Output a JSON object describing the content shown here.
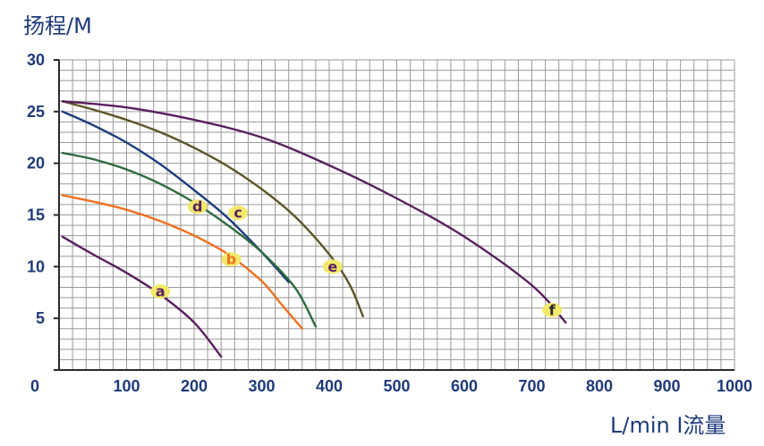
{
  "chart_data": {
    "type": "line",
    "ylabel": "扬程/M",
    "xlabel": "L/min I流量",
    "xlim": [
      0,
      1000
    ],
    "ylim": [
      0,
      30
    ],
    "grid": true,
    "x_ticks": [
      "0",
      "100",
      "200",
      "300",
      "400",
      "500",
      "600",
      "700",
      "800",
      "900",
      "1000"
    ],
    "y_ticks": [
      "5",
      "10",
      "15",
      "20",
      "25",
      "30"
    ],
    "colors": {
      "grid": "#9a9a9a",
      "axis": "#2a2a2a",
      "text": "#1f3a7a",
      "marker": "#f2e96a"
    },
    "series": [
      {
        "name": "a",
        "color": "#5a1f5f",
        "label_color": "#5a1f5f",
        "label_at": [
          150,
          7.6
        ],
        "x": [
          5,
          50,
          100,
          150,
          200,
          240
        ],
        "y": [
          12.9,
          11.2,
          9.4,
          7.3,
          4.6,
          1.3
        ]
      },
      {
        "name": "b",
        "color": "#f07020",
        "label_color": "#f07020",
        "label_at": [
          255,
          10.7
        ],
        "x": [
          5,
          50,
          100,
          150,
          200,
          250,
          300,
          330,
          360
        ],
        "y": [
          16.9,
          16.3,
          15.5,
          14.4,
          13.0,
          11.2,
          8.6,
          6.3,
          4.0
        ]
      },
      {
        "name": "c",
        "color": "#1b3c7b",
        "label_color": "#5a1f5f",
        "label_at": [
          265,
          15.2
        ],
        "x": [
          5,
          50,
          100,
          150,
          200,
          250,
          300,
          340
        ],
        "y": [
          25.0,
          23.7,
          22.0,
          19.9,
          17.4,
          14.7,
          11.4,
          8.5
        ]
      },
      {
        "name": "d",
        "color": "#2e6b3e",
        "label_color": "#5a1f5f",
        "label_at": [
          205,
          15.8
        ],
        "x": [
          5,
          50,
          100,
          150,
          200,
          250,
          300,
          350,
          380
        ],
        "y": [
          21.0,
          20.4,
          19.4,
          18.0,
          16.2,
          14.0,
          11.4,
          7.9,
          4.2
        ]
      },
      {
        "name": "e",
        "color": "#5c5526",
        "label_color": "#5a1f5f",
        "label_at": [
          405,
          10.0
        ],
        "x": [
          5,
          50,
          100,
          150,
          200,
          250,
          300,
          350,
          400,
          430,
          450
        ],
        "y": [
          26.0,
          25.2,
          24.2,
          23.0,
          21.5,
          19.7,
          17.5,
          14.8,
          11.2,
          8.3,
          5.2
        ]
      },
      {
        "name": "f",
        "color": "#5a1f5f",
        "label_color": "#2a2a2a",
        "label_at": [
          730,
          5.8
        ],
        "x": [
          5,
          100,
          200,
          300,
          400,
          500,
          600,
          700,
          750
        ],
        "y": [
          26.0,
          25.4,
          24.2,
          22.5,
          19.8,
          16.6,
          12.9,
          8.2,
          4.6
        ]
      }
    ]
  }
}
